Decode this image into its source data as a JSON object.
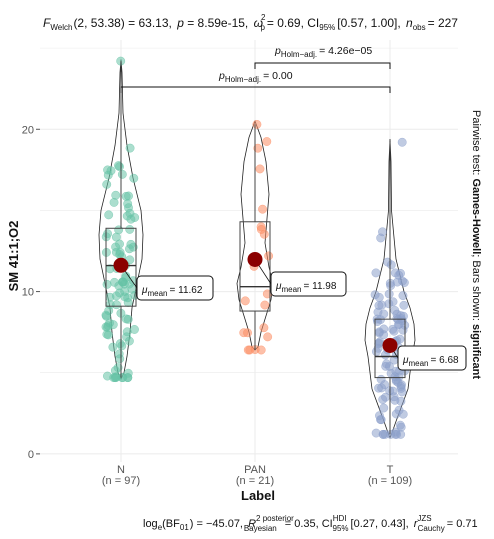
{
  "title_parts": {
    "f_welch": "F",
    "f_welch_sub": "Welch",
    "f_value": "(2, 53.38) = 63.13,",
    "p": "p",
    "p_value": "= 8.59e-15,",
    "omega": "ω",
    "omega_sup": "2",
    "omega_sub": "p",
    "omega_value": "= 0.69, CI",
    "ci_sub": "95%",
    "ci_value": "[0.57, 1.00],",
    "n": "n",
    "n_sub": "obs",
    "n_value": "= 227"
  },
  "caption_parts": {
    "log": "log",
    "log_sub": "e",
    "bf": "(BF",
    "bf_sub": "01",
    "bf_value": ") = −45.07,",
    "r2": "R",
    "r2_sup": "2 posterior",
    "r2_sub": "Bayesian",
    "r2_value": "= 0.35, CI",
    "ci_sup": "HDI",
    "ci_sub": "95%",
    "ci_value": "[0.27, 0.43],",
    "r": "r",
    "r_sup": "JZS",
    "r_sub": "Cauchy",
    "r_value": "= 0.71"
  },
  "side_note": {
    "prefix": "Pairwise test:",
    "test": "Games-Howell",
    "middle": "; Bars shown:",
    "bars": "significant"
  },
  "pvalues": [
    {
      "label_main": "p",
      "label_sub": "Holm−adj.",
      "value": "= 0.00"
    },
    {
      "label_main": "p",
      "label_sub": "Holm−adj.",
      "value": "= 4.26e−05"
    }
  ],
  "mean_labels": [
    {
      "mu": "μ",
      "sub": "mean",
      "value": "= 11.62"
    },
    {
      "mu": "μ",
      "sub": "mean",
      "value": "= 11.98"
    },
    {
      "mu": "μ",
      "sub": "mean",
      "value": "= 6.68"
    }
  ],
  "colors": {
    "N": "#66c2a5",
    "PAN": "#fc8d62",
    "T": "#8da0cb",
    "mean_point": "#8b0000",
    "grid": "#ebebeb"
  },
  "chart_data": {
    "type": "violin-box-scatter",
    "xlabel": "Label",
    "ylabel": "SM 41:1;O2",
    "ylim": [
      -0.5,
      25.5
    ],
    "yticks": [
      0,
      10,
      20
    ],
    "categories": [
      "N",
      "PAN",
      "T"
    ],
    "category_counts": [
      "(n = 97)",
      "(n = 21)",
      "(n = 109)"
    ],
    "n": [
      97,
      21,
      109
    ],
    "means": [
      11.62,
      11.98,
      6.68
    ],
    "box": [
      {
        "q1": 9.1,
        "median": 11.6,
        "q3": 13.9,
        "whisker_low": 4.7,
        "whisker_high": 24.2
      },
      {
        "q1": 8.8,
        "median": 10.3,
        "q3": 14.3,
        "whisker_low": 6.4,
        "whisker_high": 20.3
      },
      {
        "q1": 4.7,
        "median": 6.0,
        "q3": 8.3,
        "whisker_low": 1.2,
        "whisker_high": 19.2
      }
    ],
    "violin_range": [
      [
        4.6,
        24.3
      ],
      [
        6.4,
        20.5
      ],
      [
        1.0,
        19.4
      ]
    ],
    "comparisons": [
      {
        "from": "N",
        "to": "T",
        "label": "p Holm-adj. = 0.00"
      },
      {
        "from": "PAN",
        "to": "T",
        "label": "p Holm-adj. = 4.26e-05"
      }
    ],
    "grid": true,
    "legend": "none"
  }
}
